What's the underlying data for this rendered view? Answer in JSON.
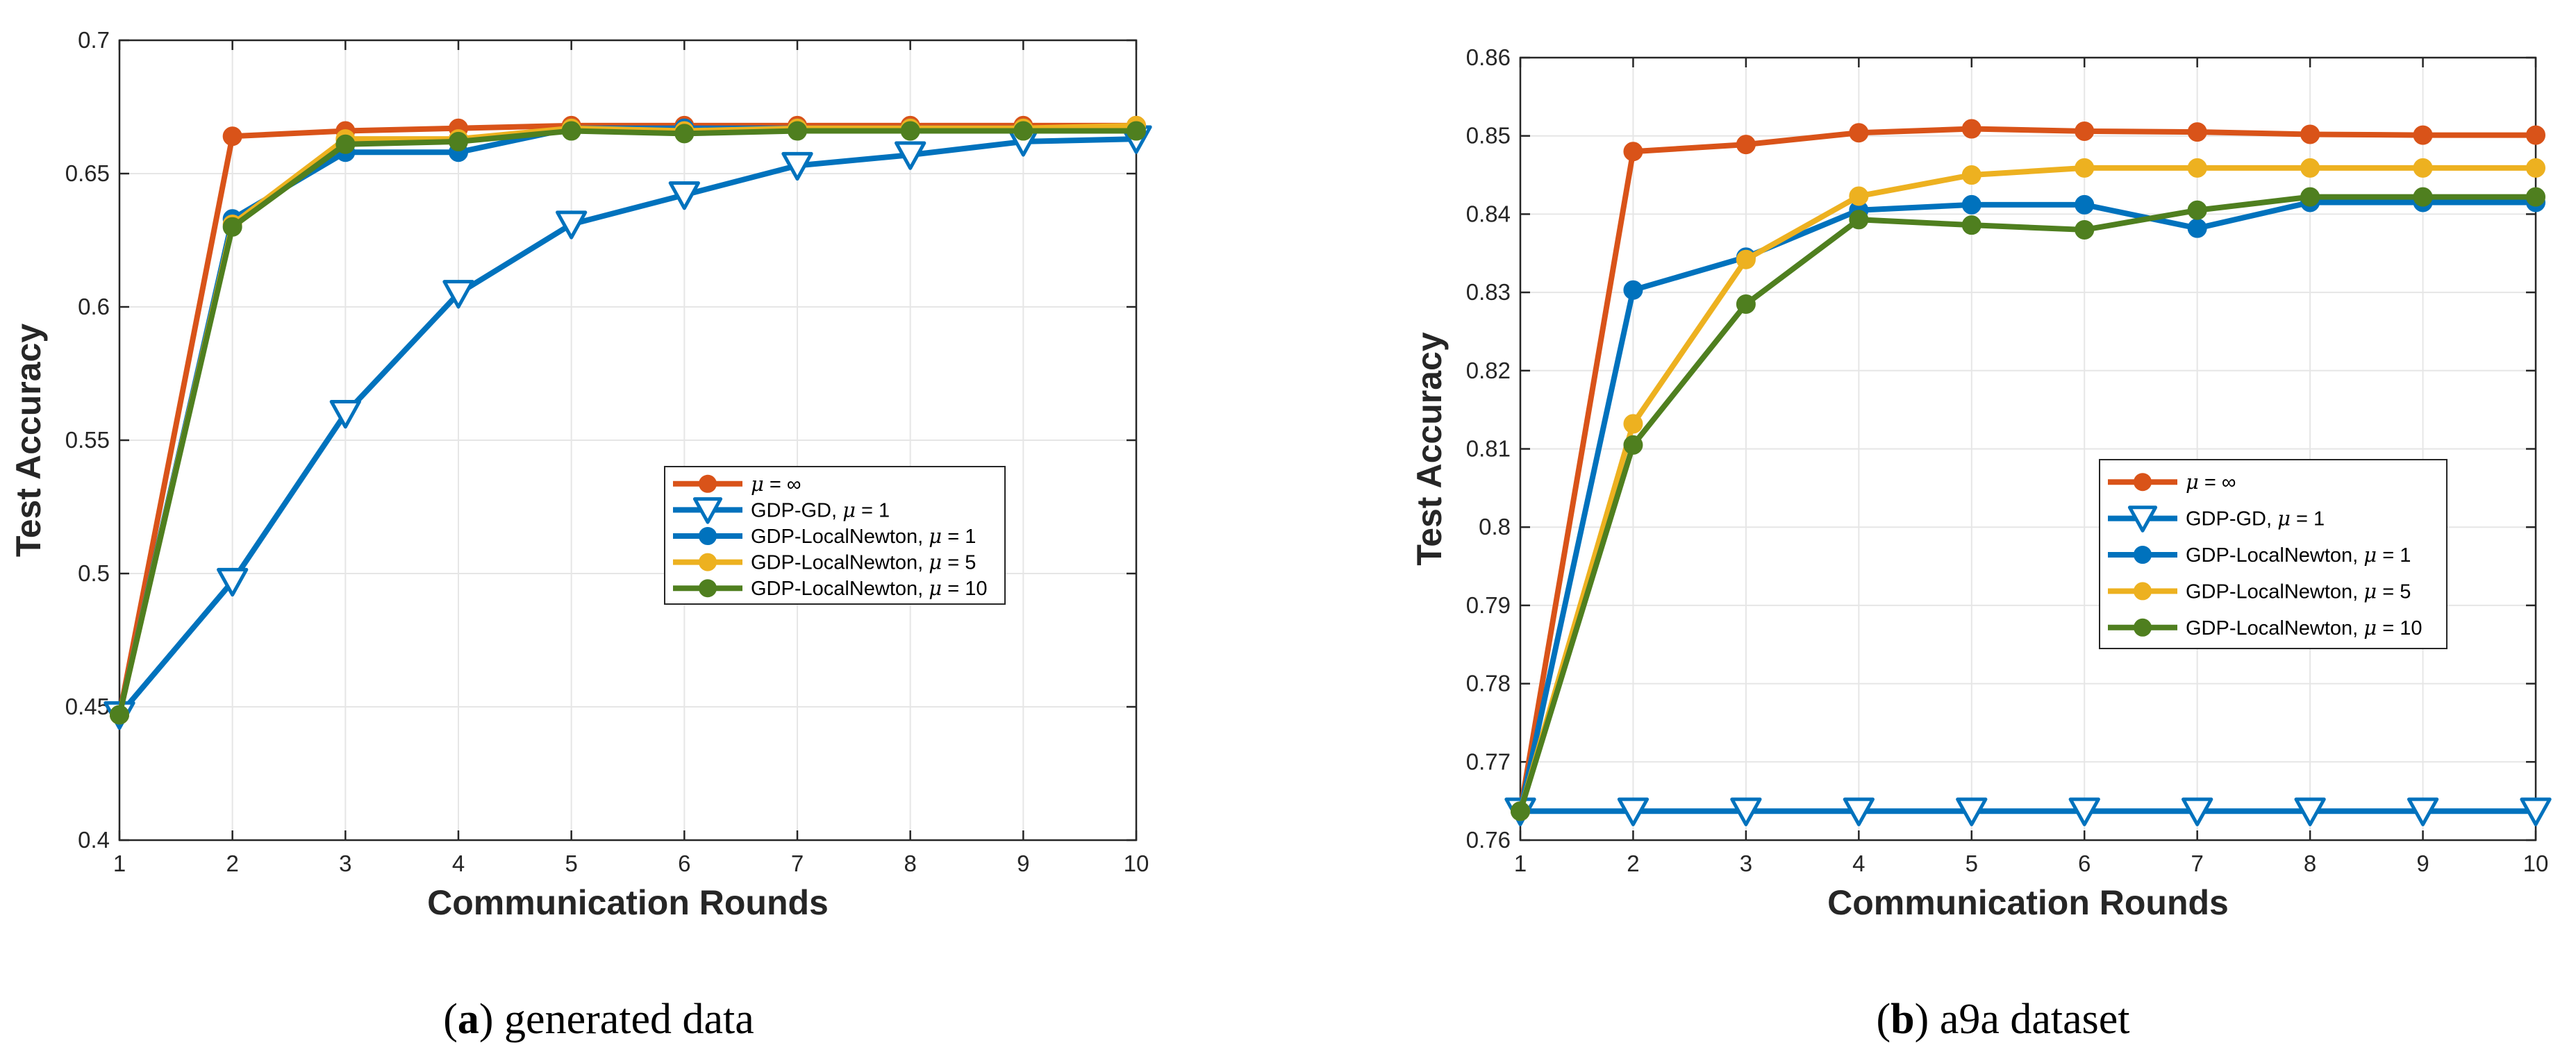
{
  "chart_data": [
    {
      "type": "line",
      "panel_label": "a",
      "caption": "generated data",
      "xlabel": "Communication Rounds",
      "ylabel": "Test Accuracy",
      "xlim": [
        1,
        10
      ],
      "ylim": [
        0.4,
        0.7
      ],
      "xticks": [
        "1",
        "2",
        "3",
        "4",
        "5",
        "6",
        "7",
        "8",
        "9",
        "10"
      ],
      "yticks": [
        "0.4",
        "0.45",
        "0.5",
        "0.55",
        "0.6",
        "0.65",
        "0.7"
      ],
      "grid": true,
      "legend_position": "center-right",
      "x": [
        1,
        2,
        3,
        4,
        5,
        6,
        7,
        8,
        9,
        10
      ],
      "series": [
        {
          "name": "μ = ∞",
          "color": "#D95319",
          "marker": "circle",
          "values": [
            0.447,
            0.664,
            0.666,
            0.667,
            0.668,
            0.668,
            0.668,
            0.668,
            0.668,
            0.668
          ]
        },
        {
          "name": "GDP-GD, μ = 1",
          "color": "#0072BD",
          "marker": "triangle-down",
          "values": [
            0.447,
            0.497,
            0.56,
            0.605,
            0.631,
            0.642,
            0.653,
            0.657,
            0.662,
            0.663
          ]
        },
        {
          "name": "GDP-LocalNewton, μ = 1",
          "color": "#0072BD",
          "marker": "circle",
          "values": [
            0.447,
            0.633,
            0.658,
            0.658,
            0.667,
            0.667,
            0.667,
            0.667,
            0.667,
            0.667
          ]
        },
        {
          "name": "GDP-LocalNewton, μ = 5",
          "color": "#EDB120",
          "marker": "circle",
          "values": [
            0.447,
            0.631,
            0.663,
            0.663,
            0.667,
            0.666,
            0.667,
            0.667,
            0.667,
            0.668
          ]
        },
        {
          "name": "GDP-LocalNewton, μ = 10",
          "color": "#4F7F1F",
          "marker": "circle",
          "values": [
            0.447,
            0.63,
            0.661,
            0.662,
            0.666,
            0.665,
            0.666,
            0.666,
            0.666,
            0.666
          ]
        }
      ]
    },
    {
      "type": "line",
      "panel_label": "b",
      "caption": "a9a dataset",
      "xlabel": "Communication Rounds",
      "ylabel": "Test Accuracy",
      "xlim": [
        1,
        10
      ],
      "ylim": [
        0.76,
        0.86
      ],
      "xticks": [
        "1",
        "2",
        "3",
        "4",
        "5",
        "6",
        "7",
        "8",
        "9",
        "10"
      ],
      "yticks": [
        "0.76",
        "0.77",
        "0.78",
        "0.79",
        "0.8",
        "0.81",
        "0.82",
        "0.83",
        "0.84",
        "0.85",
        "0.86"
      ],
      "grid": true,
      "legend_position": "center-right",
      "x": [
        1,
        2,
        3,
        4,
        5,
        6,
        7,
        8,
        9,
        10
      ],
      "series": [
        {
          "name": "μ = ∞",
          "color": "#D95319",
          "marker": "circle",
          "values": [
            0.7637,
            0.848,
            0.8489,
            0.8504,
            0.8509,
            0.8506,
            0.8505,
            0.8502,
            0.8501,
            0.8501
          ]
        },
        {
          "name": "GDP-GD, μ = 1",
          "color": "#0072BD",
          "marker": "triangle-down",
          "values": [
            0.7637,
            0.7637,
            0.7637,
            0.7637,
            0.7637,
            0.7637,
            0.7637,
            0.7637,
            0.7637,
            0.7637
          ]
        },
        {
          "name": "GDP-LocalNewton, μ = 1",
          "color": "#0072BD",
          "marker": "circle",
          "values": [
            0.7637,
            0.8303,
            0.8345,
            0.8405,
            0.8412,
            0.8412,
            0.8382,
            0.8415,
            0.8415,
            0.8415
          ]
        },
        {
          "name": "GDP-LocalNewton, μ = 5",
          "color": "#EDB120",
          "marker": "circle",
          "values": [
            0.7637,
            0.8132,
            0.8342,
            0.8423,
            0.845,
            0.8459,
            0.8459,
            0.8459,
            0.8459,
            0.8459
          ]
        },
        {
          "name": "GDP-LocalNewton, μ = 10",
          "color": "#4F7F1F",
          "marker": "circle",
          "values": [
            0.7637,
            0.8105,
            0.8285,
            0.8393,
            0.8386,
            0.838,
            0.8405,
            0.8422,
            0.8422,
            0.8422
          ]
        }
      ]
    }
  ]
}
